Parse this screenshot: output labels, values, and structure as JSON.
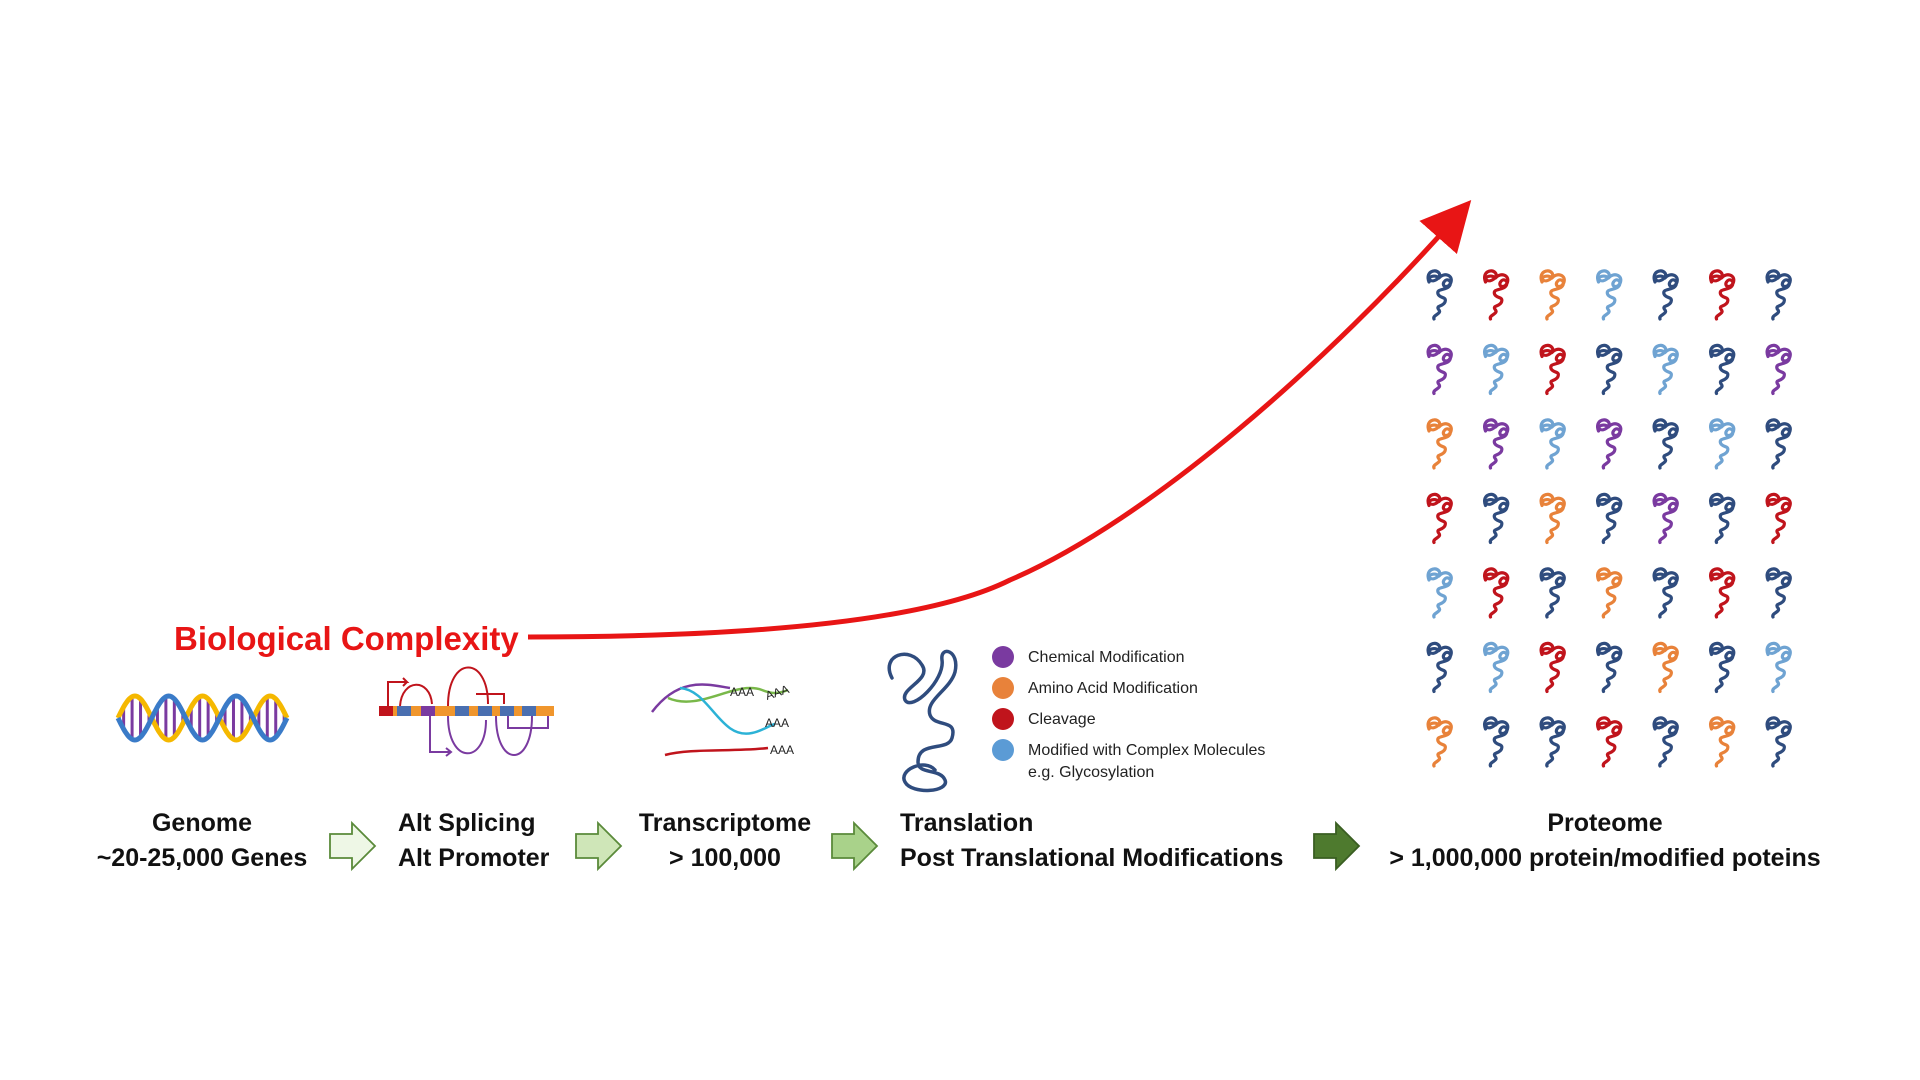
{
  "headline": "Biological Complexity",
  "colors": {
    "headline": "#e81515",
    "trend_arrow": "#e81515",
    "navy": "#2f4c7e",
    "light_blue": "#6fa3d2",
    "orange": "#e8823a",
    "red": "#c0141c",
    "purple": "#7a3aa0",
    "gold": "#f5b800",
    "teal": "#2cb2d6",
    "green_line": "#79b84a",
    "step_arrows": [
      "#eef7e6",
      "#cfe6b8",
      "#a9d28a",
      "#4e7a2e"
    ]
  },
  "stages": [
    {
      "id": "genome",
      "line1": "Genome",
      "line2": "~20-25,000 Genes"
    },
    {
      "id": "splicing",
      "line1": "Alt Splicing",
      "line2": "Alt Promoter"
    },
    {
      "id": "transcriptome",
      "line1": "Transcriptome",
      "line2": "> 100,000"
    },
    {
      "id": "translation",
      "line1": "Translation",
      "line2": "Post Translational Modifications"
    },
    {
      "id": "proteome",
      "line1": "Proteome",
      "line2": "> 1,000,000 protein/modified poteins"
    }
  ],
  "transcript_tails": [
    "AAA",
    "AAA",
    "AAA",
    "AAA"
  ],
  "ptm_legend": [
    {
      "label": "Chemical Modification",
      "sublabel": "",
      "color": "#7a3aa0"
    },
    {
      "label": "Amino Acid Modification",
      "sublabel": "",
      "color": "#e8823a"
    },
    {
      "label": "Cleavage",
      "sublabel": "",
      "color": "#c0141c"
    },
    {
      "label": "Modified with Complex Molecules",
      "sublabel": "e.g. Glycosylation",
      "color": "#5b9bd5"
    }
  ],
  "protein_grid": [
    [
      "navy",
      "red",
      "orange",
      "light_blue",
      "navy",
      "red",
      "navy"
    ],
    [
      "purple",
      "light_blue",
      "red",
      "navy",
      "light_blue",
      "navy",
      "purple"
    ],
    [
      "orange",
      "purple",
      "light_blue",
      "purple",
      "navy",
      "light_blue",
      "navy"
    ],
    [
      "red",
      "navy",
      "orange",
      "navy",
      "purple",
      "navy",
      "red"
    ],
    [
      "light_blue",
      "red",
      "navy",
      "orange",
      "navy",
      "red",
      "navy"
    ],
    [
      "navy",
      "light_blue",
      "red",
      "navy",
      "orange",
      "navy",
      "light_blue"
    ],
    [
      "orange",
      "navy",
      "navy",
      "red",
      "navy",
      "orange",
      "navy"
    ]
  ]
}
